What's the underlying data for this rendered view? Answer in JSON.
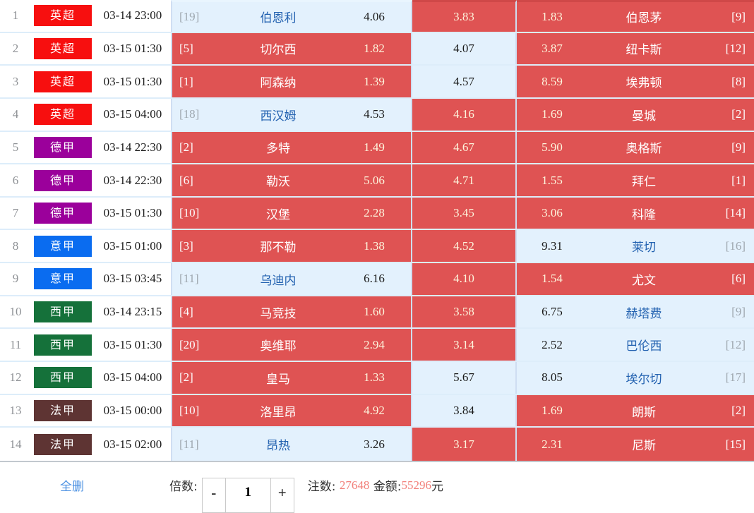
{
  "league_colors": {
    "yc": "#f70f0f",
    "dj": "#9b009b",
    "yj": "#0a6cf0",
    "xj": "#15713a",
    "fj": "#5e3433"
  },
  "state_colors": {
    "selected_bg": "#df5353",
    "unselected_bg": "#e3f1fd"
  },
  "rows": [
    {
      "num": "1",
      "league": "英超",
      "lg": "yc",
      "time": "03-14 23:00",
      "home": {
        "rank": "[19]",
        "team": "伯恩利",
        "odds": "4.06",
        "sel": false
      },
      "draw": {
        "odds": "3.83",
        "sel": true
      },
      "away": {
        "odds": "1.83",
        "team": "伯恩茅",
        "rank": "[9]",
        "sel": true
      }
    },
    {
      "num": "2",
      "league": "英超",
      "lg": "yc",
      "time": "03-15 01:30",
      "home": {
        "rank": "[5]",
        "team": "切尔西",
        "odds": "1.82",
        "sel": true
      },
      "draw": {
        "odds": "4.07",
        "sel": false
      },
      "away": {
        "odds": "3.87",
        "team": "纽卡斯",
        "rank": "[12]",
        "sel": true
      }
    },
    {
      "num": "3",
      "league": "英超",
      "lg": "yc",
      "time": "03-15 01:30",
      "home": {
        "rank": "[1]",
        "team": "阿森纳",
        "odds": "1.39",
        "sel": true
      },
      "draw": {
        "odds": "4.57",
        "sel": false
      },
      "away": {
        "odds": "8.59",
        "team": "埃弗顿",
        "rank": "[8]",
        "sel": true
      }
    },
    {
      "num": "4",
      "league": "英超",
      "lg": "yc",
      "time": "03-15 04:00",
      "home": {
        "rank": "[18]",
        "team": "西汉姆",
        "odds": "4.53",
        "sel": false
      },
      "draw": {
        "odds": "4.16",
        "sel": true
      },
      "away": {
        "odds": "1.69",
        "team": "曼城",
        "rank": "[2]",
        "sel": true
      }
    },
    {
      "num": "5",
      "league": "德甲",
      "lg": "dj",
      "time": "03-14 22:30",
      "home": {
        "rank": "[2]",
        "team": "多特",
        "odds": "1.49",
        "sel": true
      },
      "draw": {
        "odds": "4.67",
        "sel": true
      },
      "away": {
        "odds": "5.90",
        "team": "奥格斯",
        "rank": "[9]",
        "sel": true
      }
    },
    {
      "num": "6",
      "league": "德甲",
      "lg": "dj",
      "time": "03-14 22:30",
      "home": {
        "rank": "[6]",
        "team": "勒沃",
        "odds": "5.06",
        "sel": true
      },
      "draw": {
        "odds": "4.71",
        "sel": true
      },
      "away": {
        "odds": "1.55",
        "team": "拜仁",
        "rank": "[1]",
        "sel": true
      }
    },
    {
      "num": "7",
      "league": "德甲",
      "lg": "dj",
      "time": "03-15 01:30",
      "home": {
        "rank": "[10]",
        "team": "汉堡",
        "odds": "2.28",
        "sel": true
      },
      "draw": {
        "odds": "3.45",
        "sel": true
      },
      "away": {
        "odds": "3.06",
        "team": "科隆",
        "rank": "[14]",
        "sel": true
      }
    },
    {
      "num": "8",
      "league": "意甲",
      "lg": "yj",
      "time": "03-15 01:00",
      "home": {
        "rank": "[3]",
        "team": "那不勒",
        "odds": "1.38",
        "sel": true
      },
      "draw": {
        "odds": "4.52",
        "sel": true
      },
      "away": {
        "odds": "9.31",
        "team": "莱切",
        "rank": "[16]",
        "sel": false
      }
    },
    {
      "num": "9",
      "league": "意甲",
      "lg": "yj",
      "time": "03-15 03:45",
      "home": {
        "rank": "[11]",
        "team": "乌迪内",
        "odds": "6.16",
        "sel": false
      },
      "draw": {
        "odds": "4.10",
        "sel": true
      },
      "away": {
        "odds": "1.54",
        "team": "尤文",
        "rank": "[6]",
        "sel": true
      }
    },
    {
      "num": "10",
      "league": "西甲",
      "lg": "xj",
      "time": "03-14 23:15",
      "home": {
        "rank": "[4]",
        "team": "马竞技",
        "odds": "1.60",
        "sel": true
      },
      "draw": {
        "odds": "3.58",
        "sel": true
      },
      "away": {
        "odds": "6.75",
        "team": "赫塔费",
        "rank": "[9]",
        "sel": false
      }
    },
    {
      "num": "11",
      "league": "西甲",
      "lg": "xj",
      "time": "03-15 01:30",
      "home": {
        "rank": "[20]",
        "team": "奥维耶",
        "odds": "2.94",
        "sel": true
      },
      "draw": {
        "odds": "3.14",
        "sel": true
      },
      "away": {
        "odds": "2.52",
        "team": "巴伦西",
        "rank": "[12]",
        "sel": false
      }
    },
    {
      "num": "12",
      "league": "西甲",
      "lg": "xj",
      "time": "03-15 04:00",
      "home": {
        "rank": "[2]",
        "team": "皇马",
        "odds": "1.33",
        "sel": true
      },
      "draw": {
        "odds": "5.67",
        "sel": false
      },
      "away": {
        "odds": "8.05",
        "team": "埃尔切",
        "rank": "[17]",
        "sel": false
      }
    },
    {
      "num": "13",
      "league": "法甲",
      "lg": "fj",
      "time": "03-15 00:00",
      "home": {
        "rank": "[10]",
        "team": "洛里昂",
        "odds": "4.92",
        "sel": true
      },
      "draw": {
        "odds": "3.84",
        "sel": false
      },
      "away": {
        "odds": "1.69",
        "team": "朗斯",
        "rank": "[2]",
        "sel": true
      }
    },
    {
      "num": "14",
      "league": "法甲",
      "lg": "fj",
      "time": "03-15 02:00",
      "home": {
        "rank": "[11]",
        "team": "昂热",
        "odds": "3.26",
        "sel": false
      },
      "draw": {
        "odds": "3.17",
        "sel": true
      },
      "away": {
        "odds": "2.31",
        "team": "尼斯",
        "rank": "[15]",
        "sel": true
      }
    }
  ],
  "footer": {
    "delete_all": "全删",
    "multiplier_label": "倍数:",
    "minus": "-",
    "multiplier_value": "1",
    "plus": "+",
    "bets_label": "注数: ",
    "bets_value": "27648",
    "amount_label": " 金额:",
    "amount_value": "55296",
    "amount_unit": "元"
  }
}
